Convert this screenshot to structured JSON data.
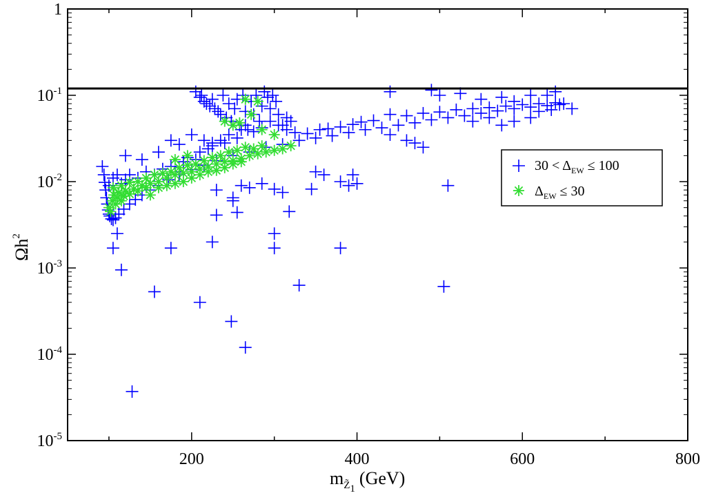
{
  "chart_data": {
    "type": "scatter",
    "title": "",
    "xlabel": {
      "main": "m",
      "sub": "Z̃",
      "subsub": "1",
      "suffix": "(GeV)"
    },
    "ylabel": {
      "main": "Ωh",
      "sup": "2"
    },
    "xlim": [
      50,
      800
    ],
    "ylim_log10": [
      -5,
      0
    ],
    "yscale": "log",
    "x_ticks": [
      200,
      400,
      600,
      800
    ],
    "x_tick_labels": [
      "200",
      "400",
      "600",
      "800"
    ],
    "y_ticks_exp": [
      -5,
      -4,
      -3,
      -2,
      -1,
      0
    ],
    "y_tick_labels": [
      {
        "base": "10",
        "exp": "-5"
      },
      {
        "base": "10",
        "exp": "-4"
      },
      {
        "base": "10",
        "exp": "-3"
      },
      {
        "base": "10",
        "exp": "-2"
      },
      {
        "base": "10",
        "exp": "-1"
      },
      {
        "base": "1",
        "exp": ""
      }
    ],
    "hline": {
      "y": 0.12,
      "color": "#000000"
    },
    "legend": {
      "position": "right",
      "entries": [
        {
          "series": 0,
          "pre": "30 < Δ",
          "sub": "EW",
          "post": " ≤ 100"
        },
        {
          "series": 1,
          "pre": "Δ",
          "sub": "EW",
          "post": " ≤ 30"
        }
      ]
    },
    "series": [
      {
        "name": "30 < ΔEW ≤ 100",
        "marker": "plus",
        "color": "#0000ff",
        "points": [
          [
            92,
            0.015
          ],
          [
            94,
            0.012
          ],
          [
            95,
            0.0098
          ],
          [
            96,
            0.008
          ],
          [
            97,
            0.0065
          ],
          [
            98,
            0.0055
          ],
          [
            99,
            0.0047
          ],
          [
            100,
            0.0042
          ],
          [
            101,
            0.004
          ],
          [
            103,
            0.0037
          ],
          [
            105,
            0.0036
          ],
          [
            108,
            0.0038
          ],
          [
            112,
            0.0042
          ],
          [
            118,
            0.0048
          ],
          [
            125,
            0.0055
          ],
          [
            132,
            0.0062
          ],
          [
            140,
            0.007
          ],
          [
            150,
            0.008
          ],
          [
            160,
            0.009
          ],
          [
            172,
            0.0105
          ],
          [
            185,
            0.012
          ],
          [
            200,
            0.0138
          ],
          [
            215,
            0.0155
          ],
          [
            230,
            0.0175
          ],
          [
            250,
            0.02
          ],
          [
            270,
            0.022
          ],
          [
            290,
            0.025
          ],
          [
            310,
            0.027
          ],
          [
            330,
            0.03
          ],
          [
            350,
            0.032
          ],
          [
            370,
            0.034
          ],
          [
            390,
            0.037
          ],
          [
            410,
            0.04
          ],
          [
            430,
            0.042
          ],
          [
            450,
            0.045
          ],
          [
            470,
            0.048
          ],
          [
            490,
            0.052
          ],
          [
            510,
            0.055
          ],
          [
            530,
            0.058
          ],
          [
            550,
            0.062
          ],
          [
            570,
            0.066
          ],
          [
            590,
            0.07
          ],
          [
            610,
            0.073
          ],
          [
            630,
            0.076
          ],
          [
            645,
            0.078
          ],
          [
            650,
            0.08
          ],
          [
            100,
            0.009
          ],
          [
            105,
            0.011
          ],
          [
            110,
            0.012
          ],
          [
            115,
            0.0095
          ],
          [
            120,
            0.0105
          ],
          [
            125,
            0.012
          ],
          [
            135,
            0.011
          ],
          [
            145,
            0.013
          ],
          [
            155,
            0.012
          ],
          [
            165,
            0.014
          ],
          [
            175,
            0.015
          ],
          [
            180,
            0.013
          ],
          [
            190,
            0.017
          ],
          [
            195,
            0.019
          ],
          [
            205,
            0.018
          ],
          [
            210,
            0.022
          ],
          [
            220,
            0.024
          ],
          [
            225,
            0.026
          ],
          [
            235,
            0.03
          ],
          [
            240,
            0.028
          ],
          [
            245,
            0.035
          ],
          [
            255,
            0.032
          ],
          [
            260,
            0.04
          ],
          [
            265,
            0.045
          ],
          [
            275,
            0.038
          ],
          [
            285,
            0.042
          ],
          [
            295,
            0.05
          ],
          [
            305,
            0.045
          ],
          [
            315,
            0.04
          ],
          [
            325,
            0.037
          ],
          [
            340,
            0.036
          ],
          [
            355,
            0.04
          ],
          [
            365,
            0.041
          ],
          [
            380,
            0.043
          ],
          [
            395,
            0.046
          ],
          [
            405,
            0.049
          ],
          [
            420,
            0.051
          ],
          [
            440,
            0.06
          ],
          [
            460,
            0.058
          ],
          [
            480,
            0.062
          ],
          [
            500,
            0.064
          ],
          [
            520,
            0.068
          ],
          [
            540,
            0.07
          ],
          [
            560,
            0.072
          ],
          [
            580,
            0.075
          ],
          [
            600,
            0.078
          ],
          [
            620,
            0.08
          ],
          [
            640,
            0.082
          ],
          [
            205,
            0.11
          ],
          [
            210,
            0.095
          ],
          [
            212,
            0.1
          ],
          [
            215,
            0.085
          ],
          [
            218,
            0.08
          ],
          [
            222,
            0.075
          ],
          [
            225,
            0.09
          ],
          [
            228,
            0.07
          ],
          [
            232,
            0.065
          ],
          [
            235,
            0.06
          ],
          [
            238,
            0.1
          ],
          [
            242,
            0.055
          ],
          [
            245,
            0.08
          ],
          [
            248,
            0.05
          ],
          [
            252,
            0.07
          ],
          [
            255,
            0.09
          ],
          [
            258,
            0.045
          ],
          [
            262,
            0.1
          ],
          [
            265,
            0.065
          ],
          [
            268,
            0.04
          ],
          [
            272,
            0.085
          ],
          [
            275,
            0.06
          ],
          [
            278,
            0.1
          ],
          [
            282,
            0.05
          ],
          [
            285,
            0.075
          ],
          [
            288,
            0.11
          ],
          [
            292,
            0.095
          ],
          [
            295,
            0.07
          ],
          [
            298,
            0.1
          ],
          [
            302,
            0.085
          ],
          [
            305,
            0.06
          ],
          [
            310,
            0.045
          ],
          [
            315,
            0.055
          ],
          [
            320,
            0.05
          ],
          [
            440,
            0.11
          ],
          [
            490,
            0.115
          ],
          [
            500,
            0.1
          ],
          [
            525,
            0.105
          ],
          [
            550,
            0.09
          ],
          [
            575,
            0.095
          ],
          [
            590,
            0.085
          ],
          [
            610,
            0.1
          ],
          [
            630,
            0.1
          ],
          [
            640,
            0.11
          ],
          [
            440,
            0.035
          ],
          [
            460,
            0.03
          ],
          [
            470,
            0.028
          ],
          [
            480,
            0.025
          ],
          [
            540,
            0.05
          ],
          [
            560,
            0.055
          ],
          [
            575,
            0.045
          ],
          [
            590,
            0.05
          ],
          [
            610,
            0.055
          ],
          [
            620,
            0.065
          ],
          [
            635,
            0.068
          ],
          [
            660,
            0.07
          ],
          [
            120,
            0.02
          ],
          [
            140,
            0.018
          ],
          [
            160,
            0.022
          ],
          [
            175,
            0.03
          ],
          [
            185,
            0.027
          ],
          [
            200,
            0.035
          ],
          [
            215,
            0.03
          ],
          [
            225,
            0.028
          ],
          [
            110,
            0.0025
          ],
          [
            105,
            0.0017
          ],
          [
            115,
            0.00095
          ],
          [
            155,
            0.00053
          ],
          [
            175,
            0.0017
          ],
          [
            210,
            0.0004
          ],
          [
            225,
            0.002
          ],
          [
            230,
            0.0041
          ],
          [
            250,
            0.006
          ],
          [
            255,
            0.0044
          ],
          [
            248,
            0.00024
          ],
          [
            265,
            0.00012
          ],
          [
            300,
            0.0025
          ],
          [
            300,
            0.0017
          ],
          [
            318,
            0.0045
          ],
          [
            330,
            0.00063
          ],
          [
            345,
            0.0082
          ],
          [
            380,
            0.0017
          ],
          [
            505,
            0.00061
          ],
          [
            510,
            0.009
          ],
          [
            128,
            3.7e-05
          ],
          [
            230,
            0.008
          ],
          [
            250,
            0.0065
          ],
          [
            260,
            0.009
          ],
          [
            270,
            0.0085
          ],
          [
            285,
            0.0095
          ],
          [
            300,
            0.0082
          ],
          [
            310,
            0.0075
          ],
          [
            350,
            0.013
          ],
          [
            360,
            0.012
          ],
          [
            380,
            0.01
          ],
          [
            390,
            0.009
          ],
          [
            400,
            0.0095
          ],
          [
            395,
            0.012
          ]
        ]
      },
      {
        "name": "ΔEW ≤ 30",
        "marker": "star",
        "color": "#33dd33",
        "points": [
          [
            100,
            0.005
          ],
          [
            102,
            0.0045
          ],
          [
            104,
            0.006
          ],
          [
            106,
            0.007
          ],
          [
            108,
            0.0055
          ],
          [
            110,
            0.0065
          ],
          [
            112,
            0.0075
          ],
          [
            115,
            0.006
          ],
          [
            118,
            0.0068
          ],
          [
            120,
            0.0078
          ],
          [
            125,
            0.0072
          ],
          [
            130,
            0.0082
          ],
          [
            135,
            0.0078
          ],
          [
            140,
            0.009
          ],
          [
            145,
            0.0085
          ],
          [
            150,
            0.0095
          ],
          [
            160,
            0.01
          ],
          [
            170,
            0.011
          ],
          [
            180,
            0.012
          ],
          [
            190,
            0.0125
          ],
          [
            200,
            0.013
          ],
          [
            210,
            0.014
          ],
          [
            220,
            0.0148
          ],
          [
            230,
            0.016
          ],
          [
            240,
            0.017
          ],
          [
            250,
            0.0175
          ],
          [
            260,
            0.0185
          ],
          [
            270,
            0.02
          ],
          [
            280,
            0.021
          ],
          [
            290,
            0.022
          ],
          [
            300,
            0.023
          ],
          [
            310,
            0.024
          ],
          [
            320,
            0.026
          ],
          [
            105,
            0.0085
          ],
          [
            115,
            0.009
          ],
          [
            125,
            0.0098
          ],
          [
            135,
            0.01
          ],
          [
            145,
            0.011
          ],
          [
            155,
            0.012
          ],
          [
            165,
            0.0125
          ],
          [
            175,
            0.013
          ],
          [
            185,
            0.0145
          ],
          [
            195,
            0.0155
          ],
          [
            205,
            0.016
          ],
          [
            215,
            0.0175
          ],
          [
            225,
            0.019
          ],
          [
            235,
            0.02
          ],
          [
            245,
            0.022
          ],
          [
            255,
            0.023
          ],
          [
            265,
            0.025
          ],
          [
            275,
            0.024
          ],
          [
            285,
            0.026
          ],
          [
            150,
            0.007
          ],
          [
            160,
            0.0085
          ],
          [
            170,
            0.009
          ],
          [
            180,
            0.0095
          ],
          [
            190,
            0.01
          ],
          [
            200,
            0.011
          ],
          [
            210,
            0.012
          ],
          [
            220,
            0.013
          ],
          [
            230,
            0.0135
          ],
          [
            240,
            0.0145
          ],
          [
            250,
            0.016
          ],
          [
            260,
            0.017
          ],
          [
            240,
            0.05
          ],
          [
            250,
            0.045
          ],
          [
            258,
            0.048
          ],
          [
            265,
            0.09
          ],
          [
            272,
            0.06
          ],
          [
            280,
            0.085
          ],
          [
            285,
            0.04
          ],
          [
            300,
            0.035
          ],
          [
            195,
            0.02
          ],
          [
            180,
            0.018
          ]
        ]
      }
    ]
  }
}
